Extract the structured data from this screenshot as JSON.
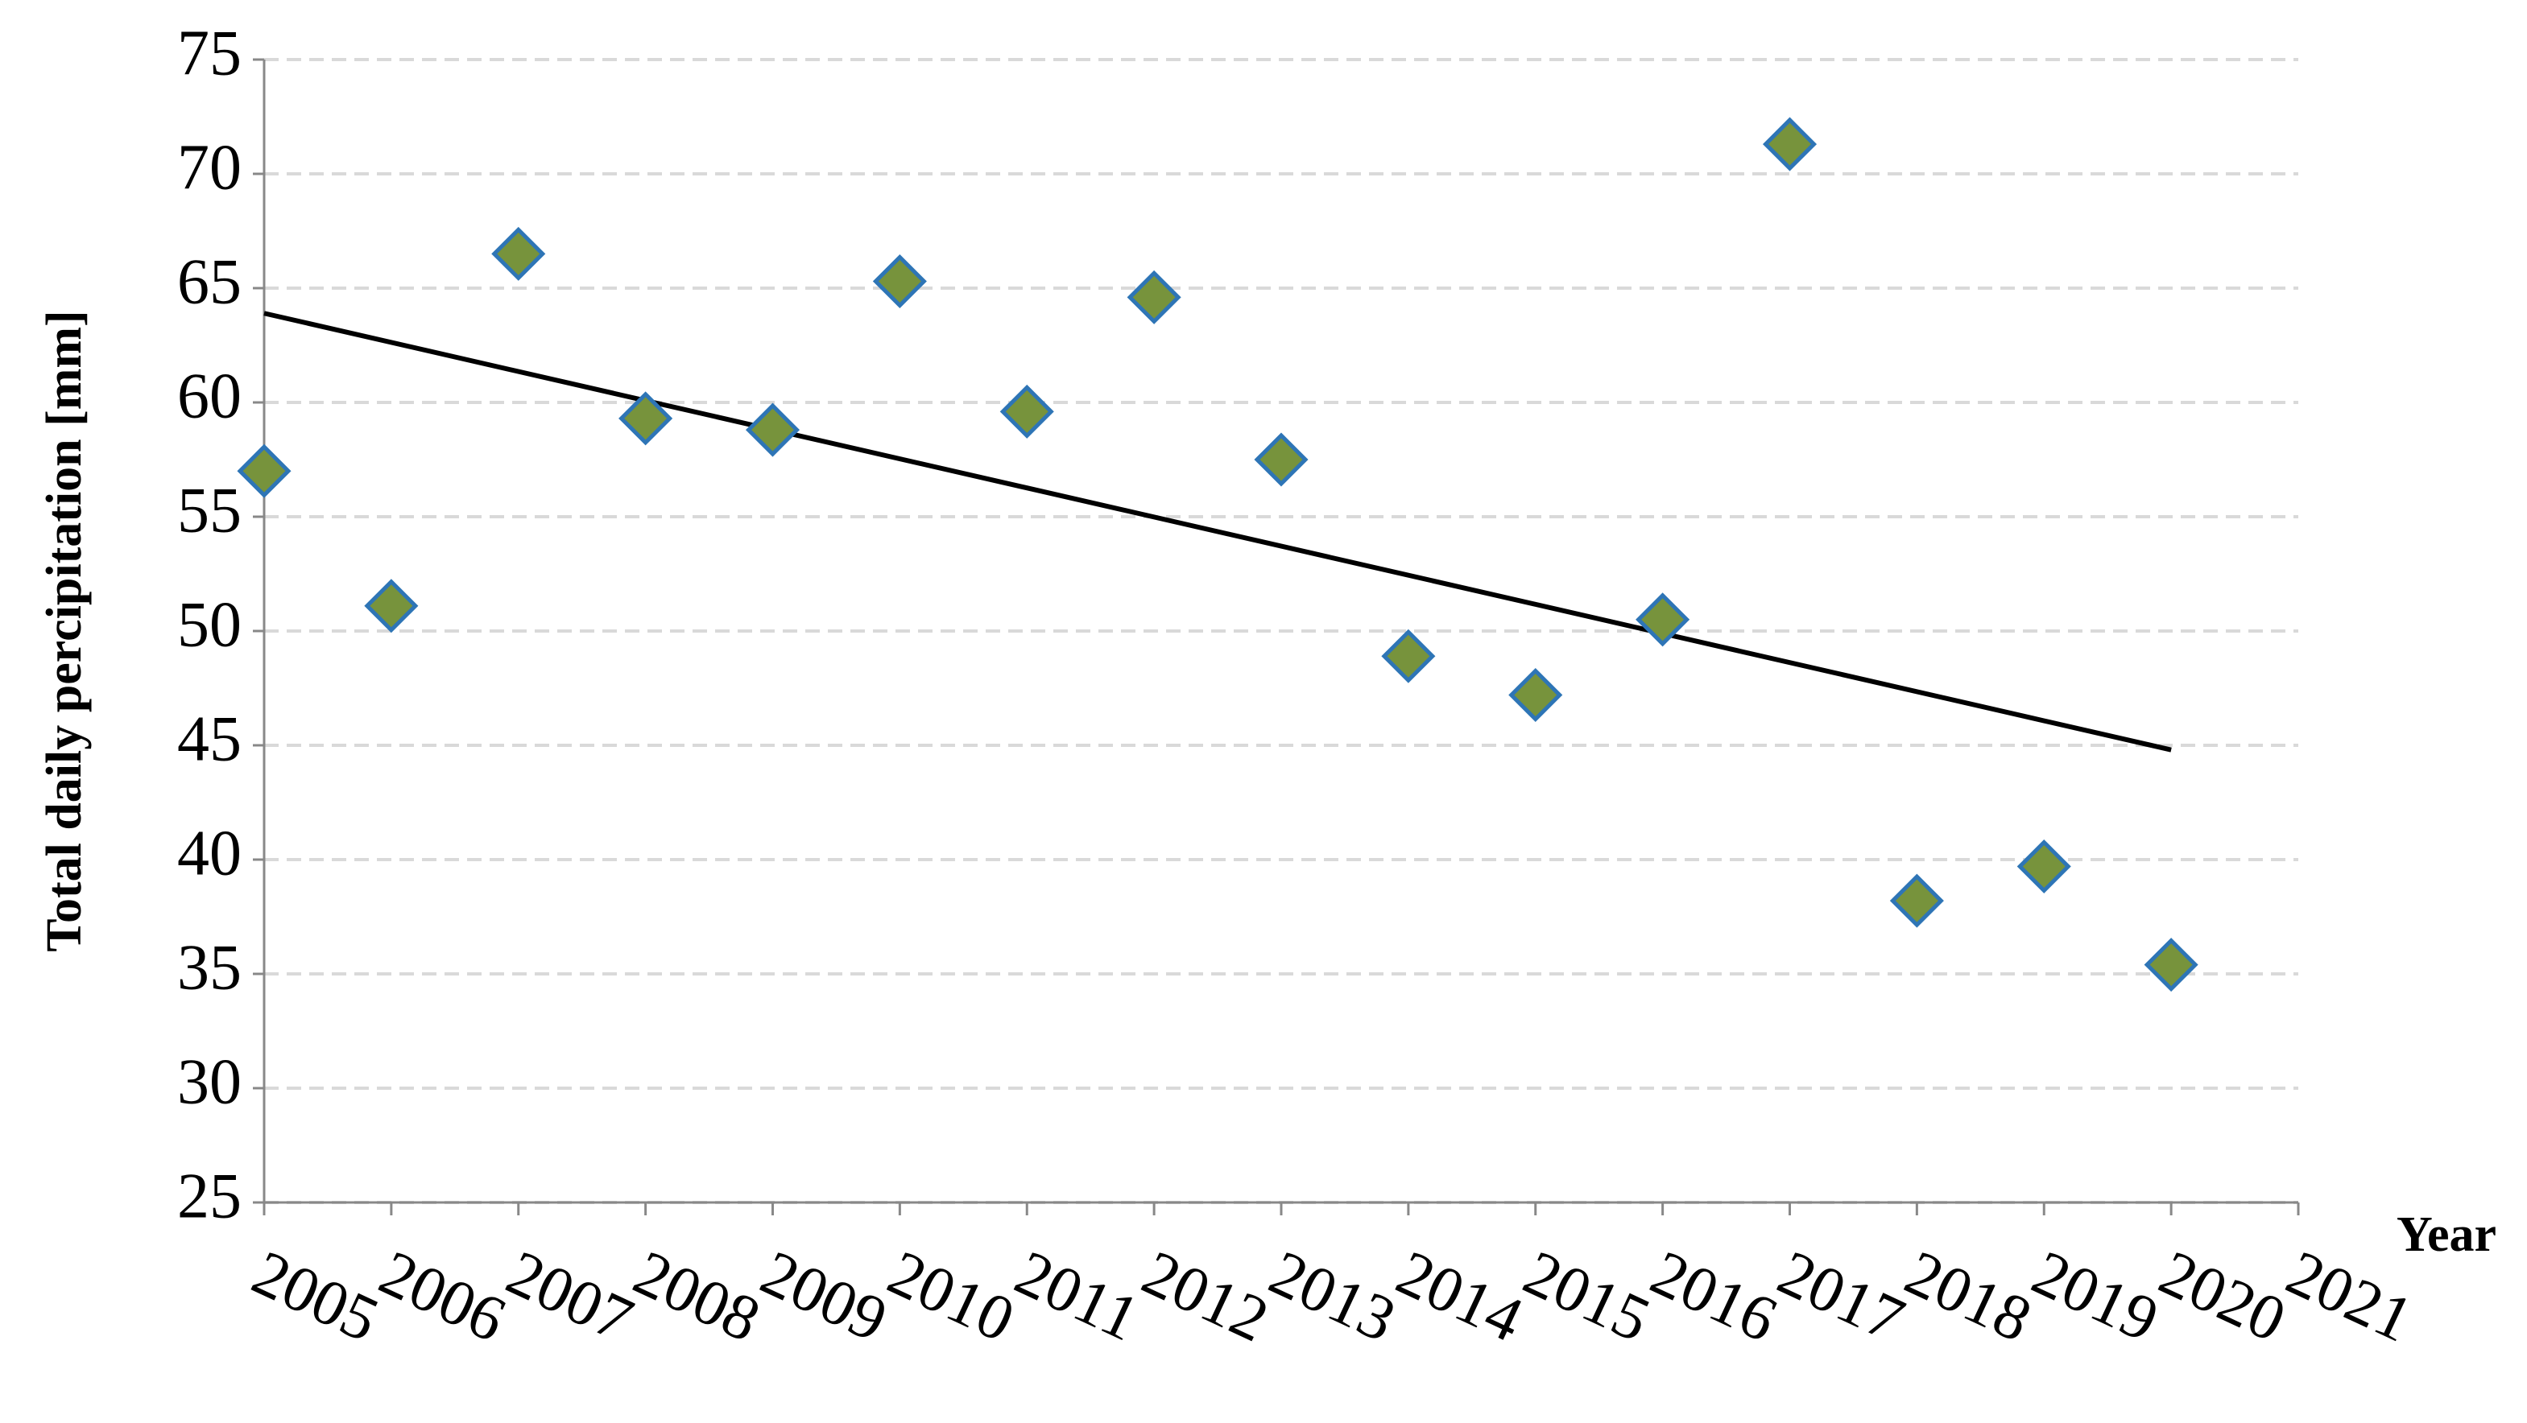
{
  "chart_data": {
    "type": "scatter",
    "ylabel": "Total daily percipitation [mm]",
    "xlabel": "Year",
    "x": [
      2005,
      2006,
      2007,
      2008,
      2009,
      2010,
      2011,
      2012,
      2013,
      2014,
      2015,
      2016,
      2017,
      2018,
      2019,
      2020
    ],
    "values": [
      57.0,
      51.1,
      66.5,
      59.3,
      58.8,
      65.3,
      59.6,
      64.6,
      57.5,
      48.9,
      47.2,
      50.5,
      71.3,
      38.2,
      39.7,
      35.4
    ],
    "color": "#77933c",
    "edge_color": "#2e75b6",
    "trendline": {
      "x": [
        2005,
        2020
      ],
      "values": [
        63.9,
        44.8
      ],
      "color": "#000000"
    },
    "xlim": [
      2005,
      2021
    ],
    "xticks": [
      2005,
      2006,
      2007,
      2008,
      2009,
      2010,
      2011,
      2012,
      2013,
      2014,
      2015,
      2016,
      2017,
      2018,
      2019,
      2020,
      2021
    ],
    "ylim": [
      25,
      75
    ],
    "yticks": [
      25,
      30,
      35,
      40,
      45,
      50,
      55,
      60,
      65,
      70,
      75
    ],
    "grid": true
  }
}
